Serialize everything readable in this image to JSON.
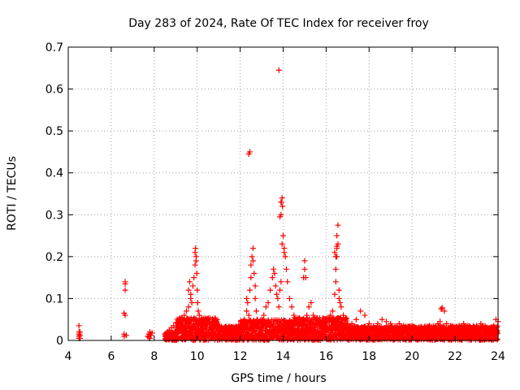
{
  "chart_data": {
    "type": "scatter",
    "title": "Day 283 of 2024, Rate Of TEC Index for receiver froy",
    "xlabel": "GPS time / hours",
    "ylabel": "ROTI / TECUs",
    "xlim": [
      4,
      24
    ],
    "ylim": [
      0,
      0.7
    ],
    "xticks": [
      4,
      6,
      8,
      10,
      12,
      14,
      16,
      18,
      20,
      22,
      24
    ],
    "yticks": [
      0,
      0.1,
      0.2,
      0.3,
      0.4,
      0.5,
      0.6,
      0.7
    ],
    "grid": true,
    "marker": "+",
    "color": "#ff0000",
    "series": [
      {
        "name": "",
        "x": [
          4.5,
          4.5,
          4.5,
          4.5,
          4.5,
          4.55,
          4.55,
          4.55,
          6.6,
          6.6,
          6.6,
          6.65,
          6.65,
          6.65,
          6.65,
          6.7,
          7.7,
          7.75,
          7.8,
          7.85,
          7.9,
          7.75,
          7.8,
          8.5,
          8.6,
          8.7,
          8.8,
          8.9,
          9.0,
          9.1,
          9.2,
          9.3,
          9.4,
          9.5,
          9.6,
          9.7,
          9.6,
          9.65,
          9.7,
          9.75,
          9.8,
          9.85,
          9.9,
          9.95,
          9.9,
          9.92,
          9.95,
          9.98,
          10.0,
          10.02,
          10.05,
          10.1,
          10.2,
          10.3,
          10.4,
          10.5,
          10.6,
          10.7,
          10.8,
          10.9,
          11.0,
          11.2,
          11.4,
          11.6,
          11.8,
          12.0,
          12.1,
          12.2,
          12.3,
          12.3,
          12.35,
          12.4,
          12.45,
          12.5,
          12.5,
          12.55,
          12.6,
          12.6,
          12.65,
          12.7,
          12.7,
          12.75,
          12.8,
          12.9,
          13.0,
          13.1,
          13.2,
          13.3,
          13.4,
          13.5,
          13.55,
          13.6,
          13.65,
          13.7,
          13.75,
          13.8,
          13.85,
          13.9,
          13.9,
          13.92,
          13.95,
          13.97,
          14.0,
          14.05,
          14.1,
          14.15,
          14.2,
          14.3,
          14.4,
          14.5,
          14.6,
          14.7,
          14.8,
          14.9,
          14.95,
          15.0,
          15.0,
          15.05,
          15.1,
          15.2,
          15.3,
          15.4,
          15.5,
          15.6,
          15.8,
          16.0,
          16.2,
          16.3,
          16.4,
          16.45,
          16.45,
          16.5,
          16.5,
          16.5,
          16.55,
          16.6,
          16.6,
          16.65,
          16.7,
          16.8,
          16.9,
          17.0,
          17.2,
          17.4,
          17.6,
          17.8,
          18.0,
          18.2,
          18.4,
          18.6,
          18.8,
          19.0,
          19.2,
          19.4,
          19.6,
          19.8,
          20.0,
          20.2,
          20.4,
          20.6,
          20.8,
          21.0,
          21.2,
          21.3,
          21.35,
          21.4,
          21.5,
          21.6,
          21.8,
          22.0,
          22.2,
          22.4,
          22.6,
          22.8,
          23.0,
          23.2,
          23.4,
          23.6,
          23.8,
          23.9,
          24.0,
          12.4,
          12.45,
          13.8,
          13.85,
          13.9,
          13.95,
          14.0,
          14.05,
          16.4,
          16.45,
          16.5,
          16.55
        ],
        "y": [
          0.005,
          0.01,
          0.015,
          0.02,
          0.035,
          0.005,
          0.012,
          0.02,
          0.01,
          0.015,
          0.065,
          0.12,
          0.135,
          0.14,
          0.06,
          0.012,
          0.01,
          0.015,
          0.02,
          0.012,
          0.018,
          0.008,
          0.005,
          0.015,
          0.02,
          0.025,
          0.03,
          0.035,
          0.03,
          0.04,
          0.035,
          0.05,
          0.06,
          0.07,
          0.08,
          0.1,
          0.12,
          0.14,
          0.11,
          0.09,
          0.13,
          0.15,
          0.18,
          0.2,
          0.21,
          0.22,
          0.19,
          0.16,
          0.12,
          0.09,
          0.07,
          0.06,
          0.05,
          0.045,
          0.04,
          0.05,
          0.04,
          0.035,
          0.03,
          0.035,
          0.03,
          0.025,
          0.03,
          0.025,
          0.03,
          0.035,
          0.04,
          0.05,
          0.07,
          0.1,
          0.09,
          0.06,
          0.12,
          0.15,
          0.18,
          0.2,
          0.22,
          0.19,
          0.16,
          0.13,
          0.1,
          0.07,
          0.05,
          0.04,
          0.05,
          0.06,
          0.08,
          0.09,
          0.12,
          0.15,
          0.17,
          0.16,
          0.13,
          0.11,
          0.1,
          0.08,
          0.12,
          0.14,
          0.3,
          0.33,
          0.34,
          0.32,
          0.25,
          0.22,
          0.2,
          0.17,
          0.14,
          0.1,
          0.08,
          0.06,
          0.05,
          0.04,
          0.04,
          0.05,
          0.15,
          0.19,
          0.17,
          0.15,
          0.06,
          0.08,
          0.09,
          0.06,
          0.05,
          0.04,
          0.035,
          0.05,
          0.06,
          0.07,
          0.11,
          0.14,
          0.17,
          0.2,
          0.225,
          0.25,
          0.275,
          0.12,
          0.1,
          0.09,
          0.08,
          0.06,
          0.05,
          0.04,
          0.04,
          0.05,
          0.07,
          0.06,
          0.04,
          0.035,
          0.04,
          0.05,
          0.045,
          0.04,
          0.035,
          0.04,
          0.035,
          0.03,
          0.035,
          0.03,
          0.025,
          0.03,
          0.035,
          0.03,
          0.04,
          0.045,
          0.075,
          0.078,
          0.07,
          0.04,
          0.035,
          0.03,
          0.035,
          0.04,
          0.035,
          0.03,
          0.035,
          0.04,
          0.035,
          0.03,
          0.035,
          0.05,
          0.045,
          0.445,
          0.45,
          0.645,
          0.295,
          0.33,
          0.23,
          0.25,
          0.21,
          0.21,
          0.2,
          0.22,
          0.23
        ]
      }
    ]
  }
}
